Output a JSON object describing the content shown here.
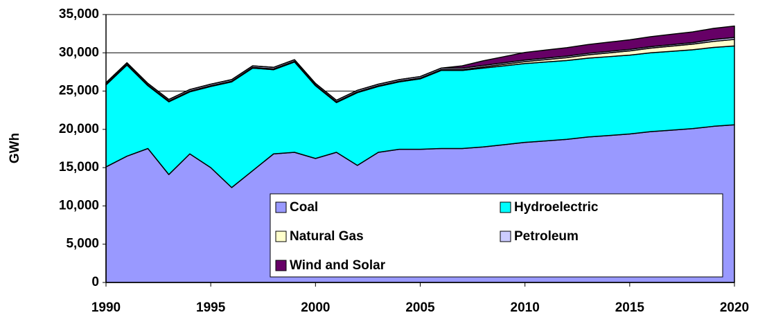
{
  "chart_data": {
    "type": "stacked_area",
    "y_label": "GWh",
    "x": [
      1990,
      1991,
      1992,
      1993,
      1994,
      1995,
      1996,
      1997,
      1998,
      1999,
      2000,
      2001,
      2002,
      2003,
      2004,
      2005,
      2006,
      2007,
      2008,
      2009,
      2010,
      2011,
      2012,
      2013,
      2014,
      2015,
      2016,
      2017,
      2018,
      2019,
      2020
    ],
    "xlim": [
      1990,
      2020
    ],
    "xticks": [
      1990,
      1995,
      2000,
      2005,
      2010,
      2015,
      2020
    ],
    "ylim": [
      0,
      35000
    ],
    "yticks": [
      0,
      {
        "value": 5000,
        "label": "5,000"
      },
      {
        "value": 10000,
        "label": "10,000"
      },
      {
        "value": 15000,
        "label": "15,000"
      },
      {
        "value": 20000,
        "label": "20,000"
      },
      {
        "value": 25000,
        "label": "25,000"
      },
      {
        "value": 30000,
        "label": "30,000"
      },
      {
        "value": 35000,
        "label": "35,000"
      }
    ],
    "grid": true,
    "series": [
      {
        "name": "Coal",
        "color": "#9999ff",
        "values": [
          15100,
          16500,
          17500,
          14100,
          16800,
          15000,
          12400,
          14600,
          16800,
          17000,
          16200,
          17000,
          15300,
          17000,
          17400,
          17400,
          17500,
          17500,
          17700,
          18000,
          18300,
          18500,
          18700,
          19000,
          19200,
          19400,
          19700,
          19900,
          20100,
          20400,
          20600
        ]
      },
      {
        "name": "Hydroelectric",
        "color": "#00ffff",
        "values": [
          10700,
          11900,
          8200,
          9500,
          8100,
          10600,
          13800,
          13400,
          11000,
          11800,
          9500,
          6500,
          9500,
          8600,
          8800,
          9200,
          10200,
          10200,
          10300,
          10300,
          10300,
          10300,
          10300,
          10300,
          10300,
          10300,
          10300,
          10300,
          10300,
          10300,
          10300
        ]
      },
      {
        "name": "Natural Gas",
        "color": "#ffffcc",
        "values": [
          100,
          100,
          100,
          100,
          100,
          100,
          100,
          100,
          100,
          100,
          100,
          100,
          100,
          100,
          100,
          100,
          100,
          100,
          150,
          200,
          250,
          310,
          370,
          430,
          490,
          550,
          610,
          670,
          730,
          790,
          850
        ]
      },
      {
        "name": "Petroleum",
        "color": "#ccccff",
        "values": [
          200,
          200,
          200,
          200,
          200,
          200,
          200,
          200,
          200,
          200,
          200,
          200,
          200,
          200,
          200,
          200,
          200,
          200,
          200,
          200,
          200,
          200,
          200,
          200,
          200,
          200,
          200,
          200,
          200,
          250,
          250
        ]
      },
      {
        "name": "Wind and Solar",
        "color": "#660066",
        "values": [
          0,
          0,
          0,
          0,
          0,
          0,
          0,
          0,
          0,
          0,
          0,
          0,
          0,
          0,
          0,
          0,
          0,
          300,
          600,
          800,
          1000,
          1050,
          1100,
          1150,
          1200,
          1250,
          1300,
          1350,
          1400,
          1450,
          1500
        ]
      }
    ]
  }
}
